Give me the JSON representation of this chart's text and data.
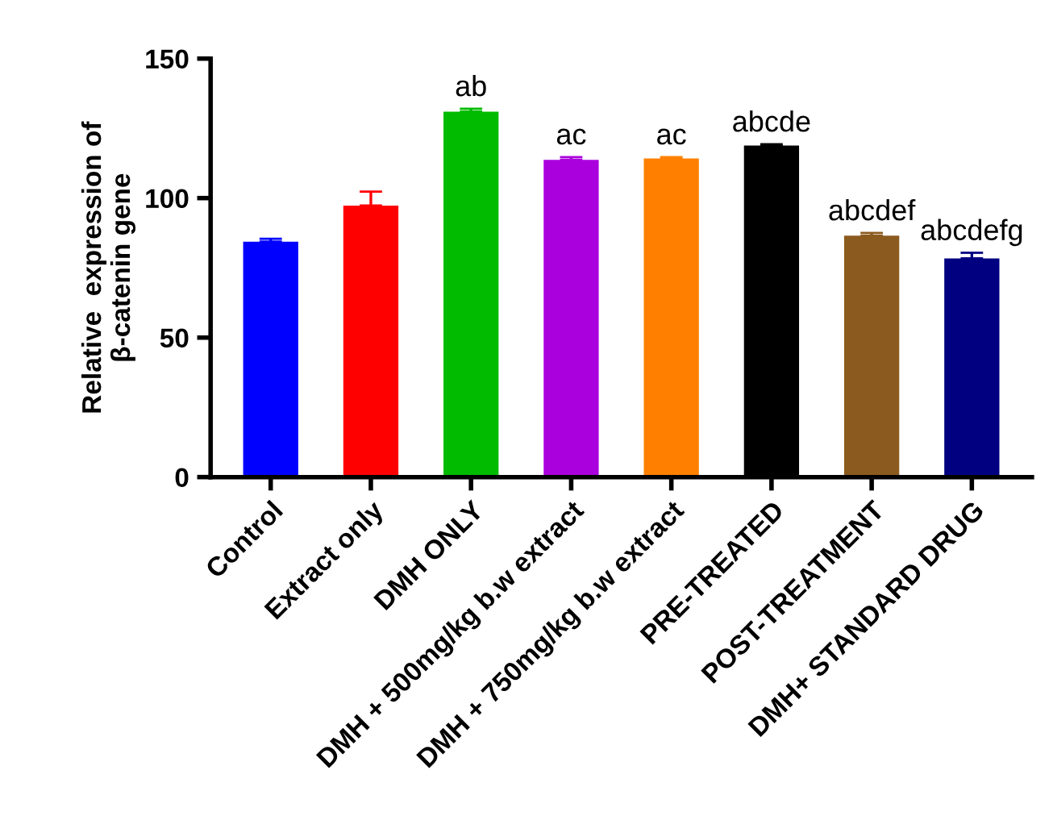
{
  "chart_data": {
    "type": "bar",
    "ylabel": "Relative  expression of\nβ-catenin gene",
    "categories": [
      "Control",
      "Extract only",
      "DMH ONLY",
      "DMH + 500mg/kg b.w extract",
      "DMH + 750mg/kg b.w extract",
      "PRE-TREATED",
      "POST-TREATMENT",
      "DMH+ STANDARD DRUG"
    ],
    "values": [
      84.4,
      97.3,
      131,
      113.7,
      114.2,
      118.8,
      86.5,
      78.4
    ],
    "errors": [
      1,
      5,
      1,
      1,
      0.5,
      0.5,
      1,
      2
    ],
    "colors": [
      "#0000ff",
      "#ff0000",
      "#00bb00",
      "#aa00dd",
      "#ff8000",
      "#000000",
      "#8b5a1e",
      "#000080"
    ],
    "ylim": [
      0,
      150
    ],
    "yticks": [
      0,
      50,
      100,
      150
    ],
    "grid": false,
    "legend": false,
    "annotations": [
      {
        "text": "ab",
        "x": "DMH ONLY",
        "y": 132
      },
      {
        "text": "ac",
        "x": "DMH + 500mg/kg b.w extract",
        "y": 114.7
      },
      {
        "text": "ac",
        "x": "DMH + 750mg/kg b.w extract",
        "y": 114.7
      },
      {
        "text": "abcde",
        "x": "PRE-TREATED",
        "y": 119.3
      },
      {
        "text": "abcdef",
        "x": "POST-TREATMENT",
        "y": 87.5
      },
      {
        "text": "abcdefg",
        "x": "DMH+ STANDARD DRUG",
        "y": 80.4
      }
    ]
  }
}
